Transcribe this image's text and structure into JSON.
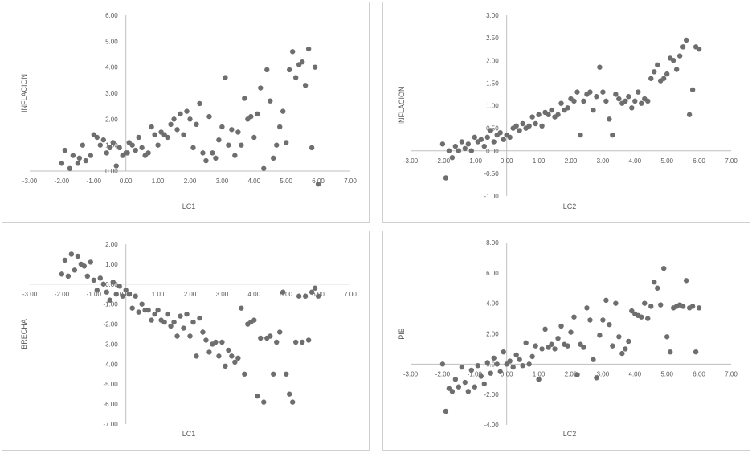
{
  "chart_data": [
    {
      "type": "scatter",
      "title": "",
      "xlabel": "LC1",
      "ylabel": "INFLACION",
      "xlim": [
        -3,
        7
      ],
      "ylim": [
        0,
        6
      ],
      "x_ticks": [
        "-3.00",
        "-2.00",
        "-1.00",
        "0.00",
        "1.00",
        "2.00",
        "3.00",
        "4.00",
        "5.00",
        "6.00",
        "7.00"
      ],
      "y_ticks": [
        "0.00",
        "1.00",
        "2.00",
        "3.00",
        "4.00",
        "5.00",
        "6.00"
      ],
      "x": [
        -2.0,
        -1.9,
        -1.75,
        -1.65,
        -1.5,
        -1.45,
        -1.35,
        -1.25,
        -1.1,
        -1.0,
        -0.9,
        -0.8,
        -0.7,
        -0.6,
        -0.5,
        -0.4,
        -0.3,
        -0.2,
        -0.1,
        0.0,
        0.05,
        0.1,
        0.2,
        0.3,
        0.4,
        0.5,
        0.6,
        0.7,
        0.8,
        0.9,
        1.0,
        1.1,
        1.2,
        1.3,
        1.4,
        1.5,
        1.6,
        1.7,
        1.8,
        1.9,
        2.0,
        2.1,
        2.2,
        2.3,
        2.4,
        2.5,
        2.6,
        2.7,
        2.8,
        2.9,
        3.0,
        3.1,
        3.2,
        3.3,
        3.4,
        3.5,
        3.6,
        3.7,
        3.8,
        3.9,
        4.0,
        4.1,
        4.2,
        4.3,
        4.4,
        4.5,
        4.6,
        4.7,
        4.8,
        4.9,
        5.0,
        5.1,
        5.2,
        5.3,
        5.4,
        5.5,
        5.6,
        5.7,
        5.8,
        5.9,
        6.0
      ],
      "y": [
        0.3,
        0.8,
        0.1,
        0.6,
        0.3,
        0.5,
        1.0,
        0.4,
        0.6,
        1.4,
        1.3,
        1.0,
        1.2,
        0.7,
        0.9,
        1.1,
        0.2,
        0.9,
        0.6,
        0.7,
        0.7,
        1.1,
        1.0,
        0.8,
        1.3,
        0.9,
        0.6,
        0.7,
        1.7,
        1.4,
        1.0,
        1.5,
        1.4,
        1.3,
        1.8,
        2.0,
        1.6,
        2.2,
        1.4,
        2.3,
        2.0,
        0.9,
        1.8,
        2.6,
        0.7,
        0.4,
        2.1,
        0.7,
        0.5,
        1.2,
        1.7,
        3.6,
        1.0,
        1.6,
        0.6,
        1.5,
        1.0,
        2.8,
        2.0,
        2.1,
        1.3,
        2.2,
        3.2,
        0.1,
        3.9,
        2.7,
        0.5,
        1.0,
        1.7,
        2.3,
        1.1,
        3.9,
        4.6,
        3.6,
        4.1,
        4.2,
        3.3,
        4.7,
        0.9,
        4.0,
        -0.5
      ],
      "series_color": "#6e6e6e"
    },
    {
      "type": "scatter",
      "title": "",
      "xlabel": "LC2",
      "ylabel": "INFLACION",
      "xlim": [
        -3,
        7
      ],
      "ylim": [
        -1,
        3
      ],
      "x_ticks": [
        "-3.00",
        "-2.00",
        "-1.00",
        "0.00",
        "1.00",
        "2.00",
        "3.00",
        "4.00",
        "5.00",
        "6.00",
        "7.00"
      ],
      "y_ticks": [
        "-1.00",
        "-0.50",
        "0.00",
        "0.50",
        "1.00",
        "1.50",
        "2.00",
        "2.50",
        "3.00"
      ],
      "x": [
        -2.0,
        -1.9,
        -1.8,
        -1.7,
        -1.6,
        -1.5,
        -1.4,
        -1.3,
        -1.2,
        -1.1,
        -1.0,
        -0.9,
        -0.8,
        -0.7,
        -0.6,
        -0.5,
        -0.4,
        -0.3,
        -0.2,
        -0.1,
        0.0,
        0.1,
        0.2,
        0.3,
        0.4,
        0.5,
        0.6,
        0.7,
        0.8,
        0.9,
        1.0,
        1.1,
        1.2,
        1.3,
        1.4,
        1.5,
        1.6,
        1.7,
        1.8,
        1.9,
        2.0,
        2.1,
        2.2,
        2.3,
        2.4,
        2.5,
        2.6,
        2.7,
        2.8,
        2.9,
        3.0,
        3.1,
        3.2,
        3.3,
        3.4,
        3.5,
        3.6,
        3.7,
        3.8,
        3.9,
        4.0,
        4.1,
        4.2,
        4.3,
        4.4,
        4.5,
        4.6,
        4.7,
        4.8,
        4.9,
        5.0,
        5.1,
        5.2,
        5.3,
        5.4,
        5.5,
        5.6,
        5.7,
        5.8,
        5.9,
        6.0
      ],
      "y": [
        0.15,
        -0.6,
        0.0,
        -0.15,
        0.1,
        0.0,
        0.2,
        0.05,
        0.15,
        0.0,
        0.3,
        0.2,
        0.25,
        0.1,
        0.3,
        0.45,
        0.2,
        0.35,
        0.4,
        0.25,
        0.35,
        0.3,
        0.5,
        0.55,
        0.45,
        0.6,
        0.5,
        0.55,
        0.75,
        0.6,
        0.8,
        0.55,
        0.85,
        0.8,
        0.9,
        0.75,
        0.8,
        1.05,
        0.9,
        0.95,
        1.15,
        1.1,
        1.3,
        0.35,
        1.1,
        1.25,
        1.3,
        0.9,
        1.2,
        1.85,
        1.3,
        1.1,
        0.7,
        0.35,
        1.25,
        1.15,
        1.05,
        1.1,
        1.2,
        0.95,
        1.1,
        1.3,
        1.05,
        1.15,
        1.1,
        1.6,
        1.75,
        1.9,
        1.55,
        1.6,
        1.7,
        2.05,
        2.0,
        1.8,
        2.1,
        2.3,
        2.45,
        0.8,
        1.35,
        2.3,
        2.25
      ],
      "series_color": "#6e6e6e"
    },
    {
      "type": "scatter",
      "title": "",
      "xlabel": "LC1",
      "ylabel": "BRECHA",
      "xlim": [
        -3,
        7
      ],
      "ylim": [
        -7,
        2
      ],
      "x_ticks": [
        "-3.00",
        "-2.00",
        "-1.00",
        "0.00",
        "1.00",
        "2.00",
        "3.00",
        "4.00",
        "5.00",
        "6.00",
        "7.00"
      ],
      "y_ticks": [
        "-7.00",
        "-6.00",
        "-5.00",
        "-4.00",
        "-3.00",
        "-2.00",
        "-1.00",
        "0.00",
        "1.00",
        "2.00"
      ],
      "x": [
        -2.0,
        -1.9,
        -1.8,
        -1.7,
        -1.6,
        -1.5,
        -1.4,
        -1.3,
        -1.2,
        -1.1,
        -1.0,
        -0.9,
        -0.8,
        -0.7,
        -0.6,
        -0.5,
        -0.4,
        -0.3,
        -0.2,
        -0.1,
        0.0,
        0.1,
        0.2,
        0.3,
        0.4,
        0.5,
        0.6,
        0.7,
        0.8,
        0.9,
        1.0,
        1.1,
        1.2,
        1.3,
        1.4,
        1.5,
        1.6,
        1.7,
        1.8,
        1.9,
        2.0,
        2.1,
        2.2,
        2.3,
        2.4,
        2.5,
        2.6,
        2.7,
        2.8,
        2.9,
        3.0,
        3.1,
        3.2,
        3.3,
        3.4,
        3.5,
        3.6,
        3.7,
        3.8,
        3.9,
        4.0,
        4.1,
        4.2,
        4.3,
        4.4,
        4.5,
        4.6,
        4.7,
        4.8,
        4.9,
        5.0,
        5.1,
        5.2,
        5.3,
        5.4,
        5.5,
        5.6,
        5.7,
        5.8,
        5.9,
        6.0
      ],
      "y": [
        0.5,
        1.2,
        0.4,
        1.5,
        0.7,
        1.4,
        1.0,
        0.9,
        0.4,
        1.1,
        0.2,
        -0.3,
        0.3,
        0.0,
        -0.4,
        -0.8,
        0.1,
        -0.5,
        -0.1,
        -0.6,
        -0.3,
        -0.5,
        -1.2,
        -0.6,
        -1.4,
        -1.0,
        -1.3,
        -1.3,
        -1.8,
        -1.5,
        -1.3,
        -1.8,
        -1.9,
        -1.5,
        -2.1,
        -1.9,
        -2.6,
        -1.6,
        -2.2,
        -1.5,
        -2.6,
        -1.9,
        -3.6,
        -1.7,
        -2.4,
        -2.8,
        -3.4,
        -3.0,
        -2.9,
        -3.6,
        -2.9,
        -4.1,
        -3.3,
        -3.6,
        -3.9,
        -3.7,
        -1.2,
        -4.5,
        -2.0,
        -1.9,
        -1.8,
        -5.6,
        -2.7,
        -5.9,
        -2.7,
        -2.6,
        -4.5,
        -2.9,
        -2.4,
        -0.4,
        -4.5,
        -5.5,
        -5.9,
        -2.9,
        -0.6,
        -2.9,
        -0.6,
        -2.8,
        -0.4,
        -0.2,
        -0.6
      ],
      "series_color": "#6e6e6e"
    },
    {
      "type": "scatter",
      "title": "",
      "xlabel": "LC2",
      "ylabel": "PIB",
      "xlim": [
        -3,
        7
      ],
      "ylim": [
        -4,
        8
      ],
      "x_ticks": [
        "-3.00",
        "-2.00",
        "-1.00",
        "0.00",
        "1.00",
        "2.00",
        "3.00",
        "4.00",
        "5.00",
        "6.00",
        "7.00"
      ],
      "y_ticks": [
        "-4.00",
        "-2.00",
        "0.00",
        "2.00",
        "4.00",
        "6.00",
        "8.00"
      ],
      "x": [
        -2.0,
        -1.9,
        -1.8,
        -1.7,
        -1.6,
        -1.5,
        -1.4,
        -1.3,
        -1.2,
        -1.1,
        -1.0,
        -0.9,
        -0.8,
        -0.7,
        -0.6,
        -0.5,
        -0.4,
        -0.3,
        -0.2,
        -0.1,
        0.0,
        0.1,
        0.2,
        0.3,
        0.4,
        0.5,
        0.6,
        0.7,
        0.8,
        0.9,
        1.0,
        1.1,
        1.2,
        1.3,
        1.4,
        1.5,
        1.6,
        1.7,
        1.8,
        1.9,
        2.0,
        2.1,
        2.2,
        2.3,
        2.4,
        2.5,
        2.6,
        2.7,
        2.8,
        2.9,
        3.0,
        3.1,
        3.2,
        3.3,
        3.4,
        3.5,
        3.6,
        3.7,
        3.8,
        3.9,
        4.0,
        4.1,
        4.2,
        4.3,
        4.4,
        4.5,
        4.6,
        4.7,
        4.8,
        4.9,
        5.0,
        5.1,
        5.2,
        5.3,
        5.4,
        5.5,
        5.6,
        5.7,
        5.8,
        5.9,
        6.0
      ],
      "y": [
        0.0,
        -3.1,
        -1.6,
        -1.8,
        -1.0,
        -1.5,
        -0.2,
        -1.2,
        -1.8,
        -0.4,
        -1.5,
        -0.1,
        -0.8,
        -1.3,
        0.1,
        -0.6,
        0.4,
        0.0,
        -0.5,
        0.8,
        0.0,
        0.2,
        -0.2,
        0.6,
        0.3,
        -0.1,
        1.4,
        0.0,
        0.5,
        1.2,
        -1.0,
        1.0,
        2.3,
        1.1,
        1.3,
        1.0,
        1.7,
        2.5,
        1.3,
        1.2,
        2.1,
        3.1,
        -0.7,
        1.3,
        1.1,
        3.7,
        2.9,
        0.3,
        -0.9,
        1.9,
        2.9,
        4.2,
        2.6,
        1.2,
        4.0,
        1.8,
        0.7,
        1.0,
        1.5,
        3.5,
        3.3,
        3.2,
        3.1,
        4.0,
        3.0,
        3.8,
        5.4,
        5.0,
        3.9,
        6.3,
        1.8,
        0.8,
        3.7,
        3.8,
        3.9,
        3.8,
        5.5,
        3.7,
        3.8,
        0.8,
        3.7
      ],
      "series_color": "#6e6e6e"
    }
  ]
}
